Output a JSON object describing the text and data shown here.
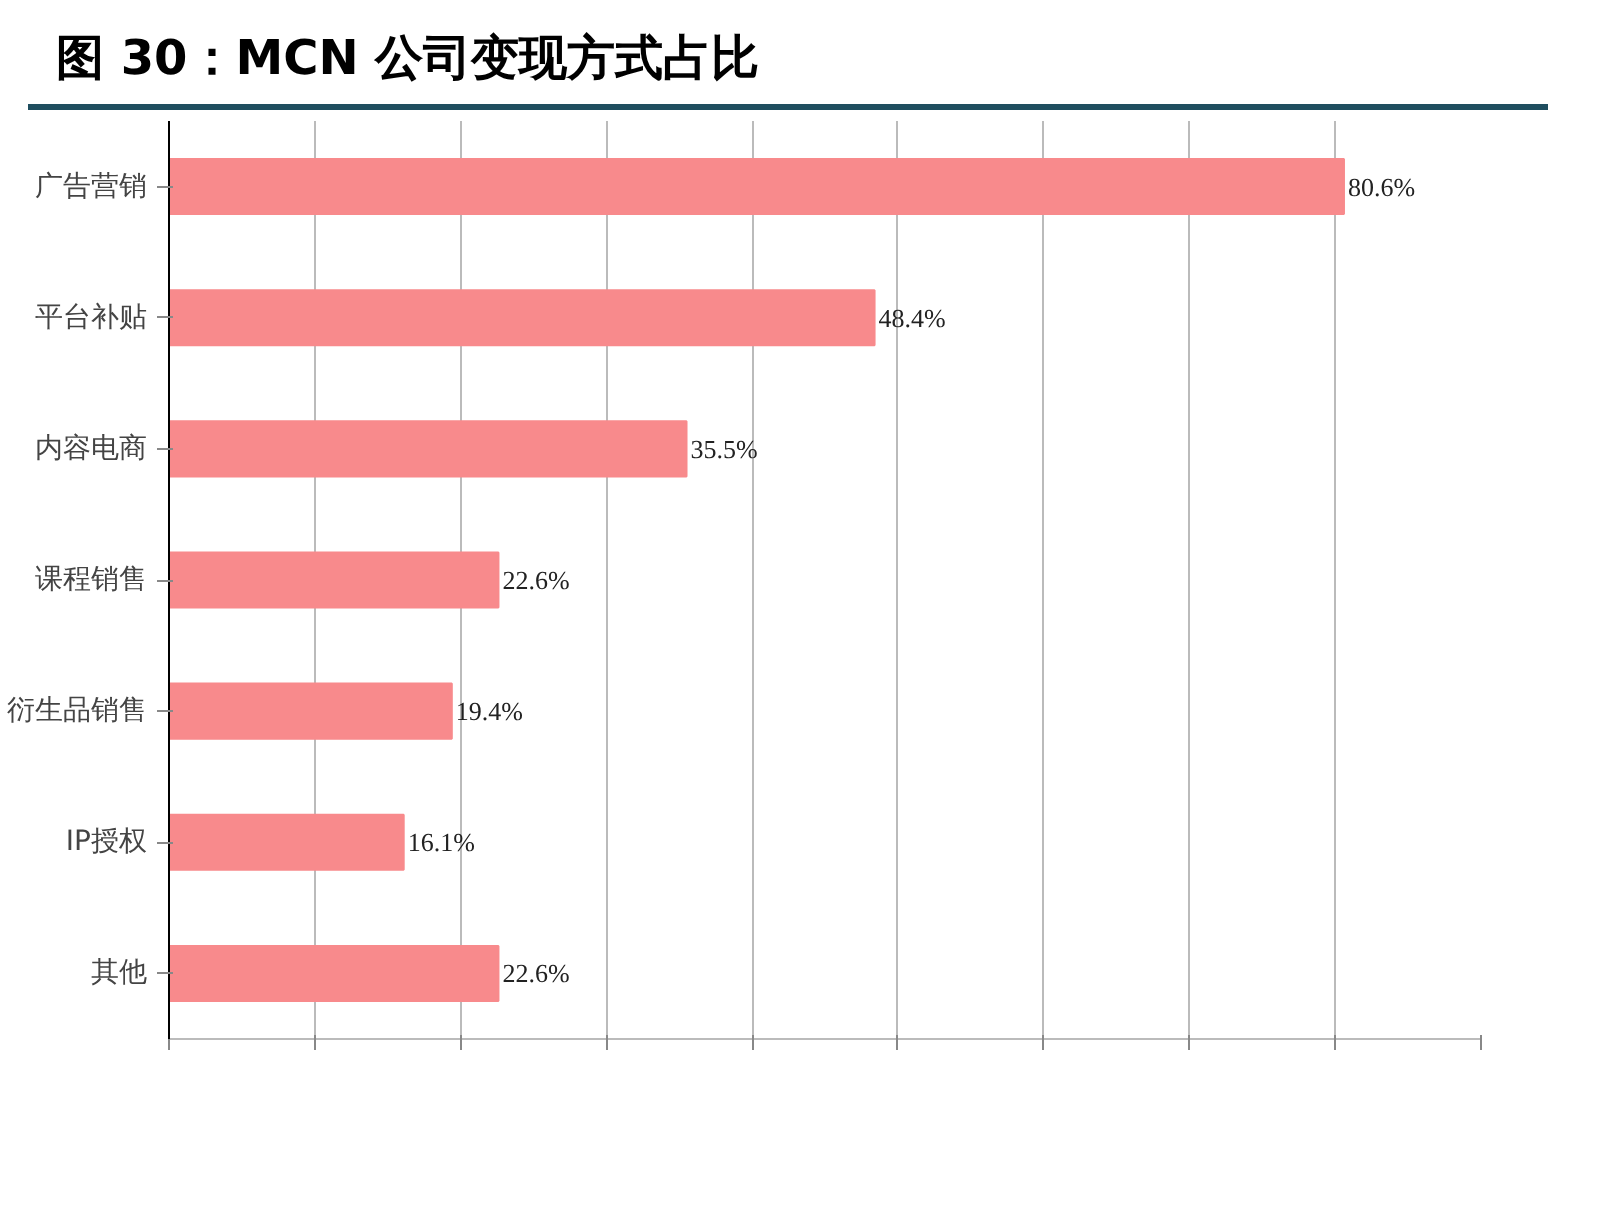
{
  "chart_data": {
    "type": "bar",
    "orientation": "horizontal",
    "title": "图 30：MCN 公司变现方式占比",
    "categories": [
      "广告营销",
      "平台补贴",
      "内容电商",
      "课程销售",
      "衍生品销售",
      "IP授权",
      "其他"
    ],
    "values": [
      80.6,
      48.4,
      35.5,
      22.6,
      19.4,
      16.1,
      22.6
    ],
    "value_labels": [
      "80.6%",
      "48.4%",
      "35.5%",
      "22.6%",
      "19.4%",
      "16.1%",
      "22.6%"
    ],
    "color": "#f88a8c",
    "xlim": [
      0,
      90
    ],
    "xticks": [
      {
        "value": 0,
        "label": null
      },
      {
        "value": 10,
        "label": null
      },
      {
        "value": 20,
        "label": null
      },
      {
        "value": 30,
        "label": null
      },
      {
        "value": 40,
        "label": null
      },
      {
        "value": 50,
        "label": null
      },
      {
        "value": 60,
        "label": null
      },
      {
        "value": 70,
        "label": null
      },
      {
        "value": 80,
        "label": null
      },
      {
        "value": 90,
        "label": null
      }
    ],
    "grid": "x",
    "tick_labels": "y"
  }
}
